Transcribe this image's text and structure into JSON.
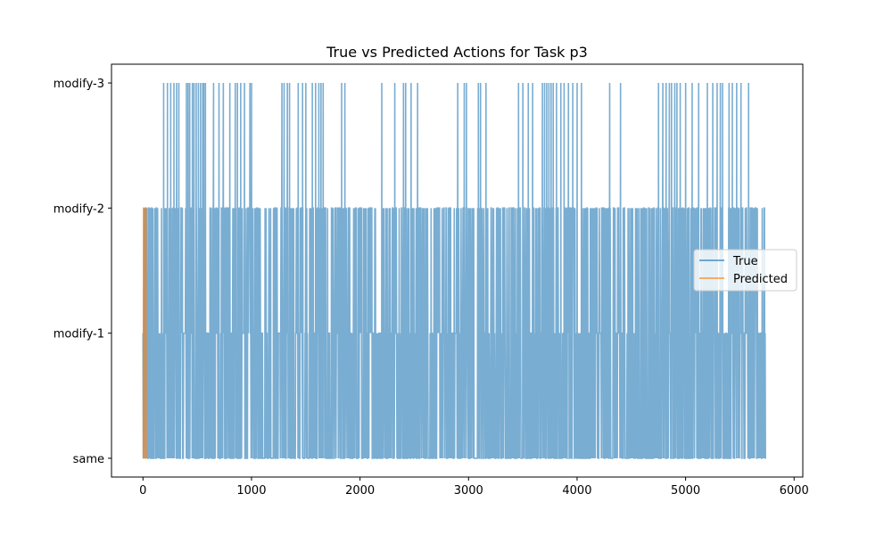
{
  "chart_data": {
    "type": "line",
    "title": "True vs Predicted Actions for Task p3",
    "xlabel": "",
    "ylabel": "",
    "xlim": [
      -290,
      6080
    ],
    "ylim": [
      -0.15,
      3.15
    ],
    "x_ticks": [
      0,
      1000,
      2000,
      3000,
      4000,
      5000,
      6000
    ],
    "y_categories": [
      "same",
      "modify-1",
      "modify-2",
      "modify-3"
    ],
    "grid": false,
    "legend_position": "center-right",
    "series": [
      {
        "name": "True",
        "color": "#1f77b4",
        "alpha": 0.6,
        "x_range": [
          0,
          5740
        ],
        "note_pattern": "dense oscillation between same, modify-1, modify-2, with frequent spikes to modify-3",
        "modify3_spikes": [
          190,
          225,
          255,
          285,
          310,
          330,
          400,
          415,
          430,
          455,
          470,
          490,
          510,
          530,
          550,
          560,
          575,
          650,
          700,
          740,
          800,
          850,
          870,
          900,
          935,
          985,
          1000,
          1280,
          1300,
          1330,
          1350,
          1430,
          1470,
          1500,
          1560,
          1590,
          1620,
          1640,
          1660,
          1830,
          1860,
          2200,
          2320,
          2400,
          2420,
          2470,
          2530,
          2900,
          2960,
          2980,
          3090,
          3110,
          3160,
          3460,
          3500,
          3550,
          3590,
          3680,
          3700,
          3720,
          3740,
          3760,
          3780,
          3810,
          3850,
          3880,
          3920,
          3960,
          4000,
          4040,
          4300,
          4400,
          4750,
          4790,
          4820,
          4850,
          4870,
          4900,
          4920,
          4950,
          5000,
          5060,
          5120,
          5200,
          5250,
          5290,
          5320,
          5340,
          5400,
          5430,
          5470,
          5510,
          5580
        ]
      },
      {
        "name": "Predicted",
        "color": "#ff7f0e",
        "alpha": 0.6,
        "x_range": [
          0,
          30
        ],
        "note_pattern": "short burst near x=0 between same, modify-1, modify-2"
      }
    ]
  }
}
